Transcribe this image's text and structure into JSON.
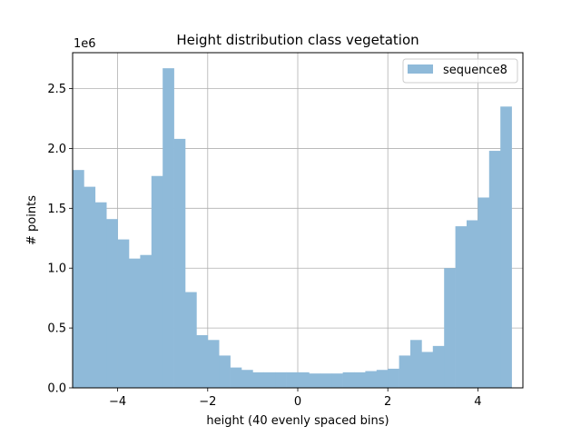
{
  "chart_data": {
    "type": "bar",
    "title": "Height distribution class vegetation",
    "xlabel": "height (40 evenly spaced bins)",
    "ylabel": "# points",
    "y_offset_label": "1e6",
    "xlim": [
      -5,
      5
    ],
    "ylim": [
      0,
      2.8
    ],
    "x_ticks": [
      -4,
      -2,
      0,
      2,
      4
    ],
    "x_tick_labels": [
      "−4",
      "−2",
      "0",
      "2",
      "4"
    ],
    "y_ticks": [
      0.0,
      0.5,
      1.0,
      1.5,
      2.0,
      2.5
    ],
    "y_tick_labels": [
      "0.0",
      "0.5",
      "1.0",
      "1.5",
      "2.0",
      "2.5"
    ],
    "grid": true,
    "legend_position": "top-right",
    "bin_edges_start": -5,
    "bin_width": 0.25,
    "series": [
      {
        "name": "sequence8",
        "color": "#8fbad9",
        "values": [
          1.82,
          1.68,
          1.55,
          1.41,
          1.24,
          1.08,
          1.11,
          1.77,
          2.67,
          2.08,
          0.8,
          0.44,
          0.4,
          0.27,
          0.17,
          0.15,
          0.13,
          0.13,
          0.13,
          0.13,
          0.13,
          0.12,
          0.12,
          0.12,
          0.13,
          0.13,
          0.14,
          0.15,
          0.16,
          0.27,
          0.4,
          0.3,
          0.35,
          1.0,
          1.35,
          1.4,
          1.59,
          1.98,
          2.35,
          0.0
        ]
      }
    ]
  }
}
